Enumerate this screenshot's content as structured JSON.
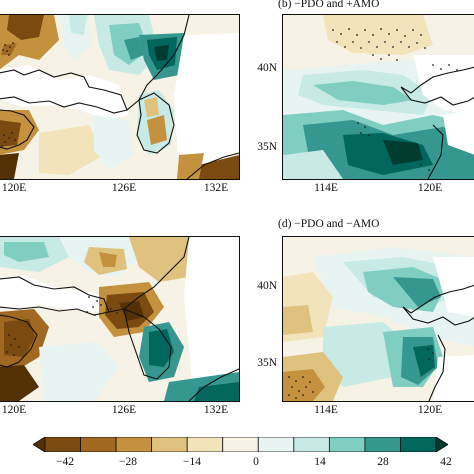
{
  "panels": [
    {
      "id": "a",
      "title": "",
      "x_ticks": [
        "120E",
        "126E",
        "132E"
      ],
      "y_ticks": []
    },
    {
      "id": "b",
      "title": "(b) −PDO and +AMO",
      "x_ticks": [
        "114E",
        "120E"
      ],
      "y_ticks": [
        "40N",
        "35N"
      ]
    },
    {
      "id": "c",
      "title": "",
      "x_ticks": [
        "120E",
        "126E",
        "132E"
      ],
      "y_ticks": []
    },
    {
      "id": "d",
      "title": "(d) −PDO and −AMO",
      "x_ticks": [
        "114E",
        "120E"
      ],
      "y_ticks": [
        "40N",
        "35N"
      ]
    }
  ],
  "colorbar": {
    "labels": [
      "−42",
      "−28",
      "−14",
      "0",
      "14",
      "28",
      "42"
    ],
    "colors": [
      "#543005",
      "#7a4a10",
      "#a06820",
      "#c4913e",
      "#dfc27d",
      "#f3e3bb",
      "#f6f2e6",
      "#e8f4f1",
      "#c7eae5",
      "#80cdc1",
      "#35978f",
      "#01665e",
      "#003c30"
    ]
  }
}
